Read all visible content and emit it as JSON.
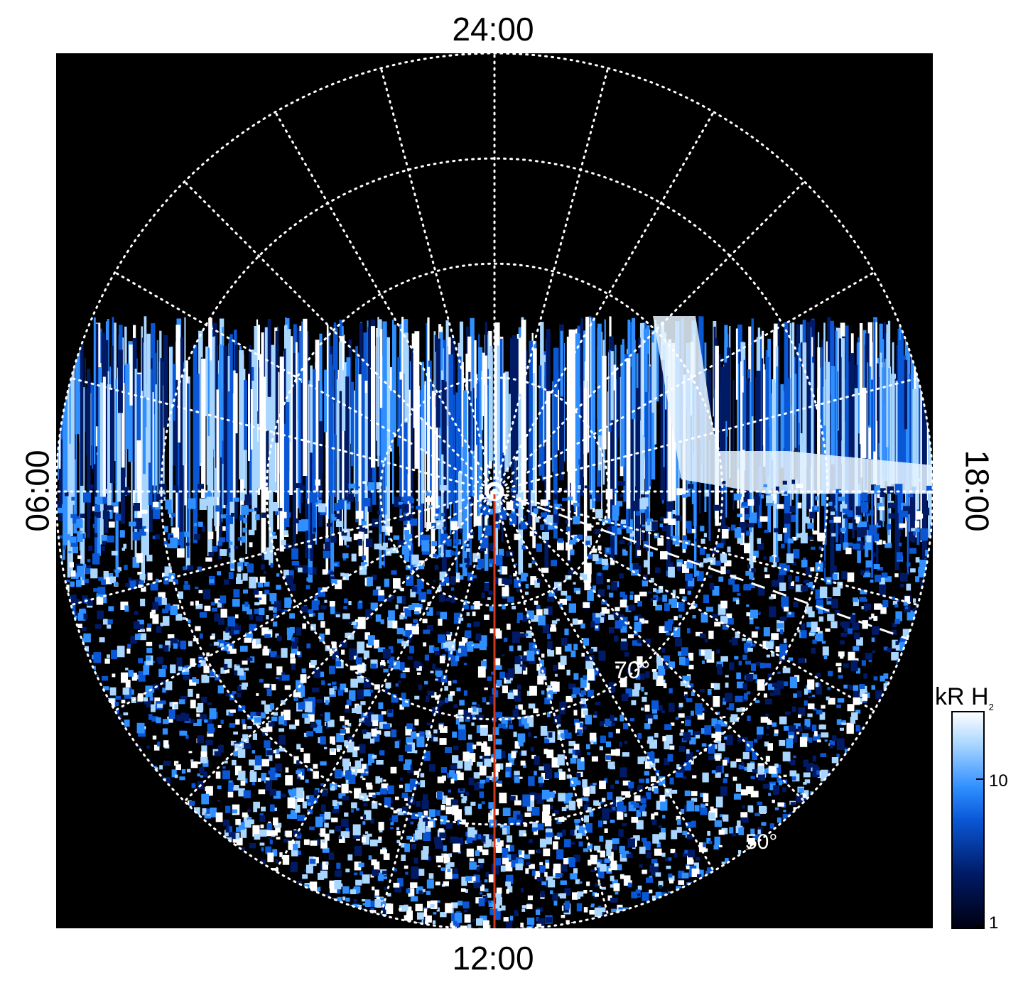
{
  "local_time_labels": {
    "top": "24:00",
    "bottom": "12:00",
    "left": "06:00",
    "right": "18:00"
  },
  "latitude_labels": [
    {
      "text": "70°",
      "latitude": 70
    },
    {
      "text": "50°",
      "latitude": 50
    }
  ],
  "colorbar": {
    "title": "kR H",
    "subscript": "2",
    "ticks": [
      "10",
      "1"
    ],
    "colors": [
      "#000010",
      "#001a66",
      "#0a57d6",
      "#2f8fff",
      "#a9d6ff",
      "#ffffff"
    ]
  },
  "grid": {
    "line_color": "#ffffff",
    "meridian_line_color": "#d2381b",
    "latitude_circles_deg": [
      50,
      60,
      70,
      80
    ]
  },
  "background": "#000000"
}
